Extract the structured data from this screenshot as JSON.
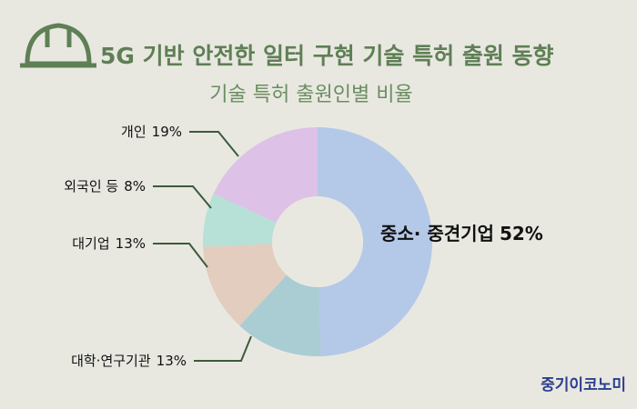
{
  "chart_data": {
    "type": "donut",
    "title": "5G 기반 안전한 일터 구현 기술 특허 출원 동향",
    "subtitle": "기술 특허 출원인별 비율",
    "categories": [
      "중소· 중견기업",
      "대학·연구기관",
      "대기업",
      "외국인 등",
      "개인"
    ],
    "values": [
      52,
      13,
      13,
      8,
      19
    ],
    "value_labels": [
      "52%",
      "13%",
      "13%",
      "8%",
      "19%"
    ],
    "colors": [
      "#b4c8e8",
      "#a9cdd3",
      "#e2cdbf",
      "#b7e0d6",
      "#ddc1e6"
    ],
    "source": "중기이코노미"
  }
}
